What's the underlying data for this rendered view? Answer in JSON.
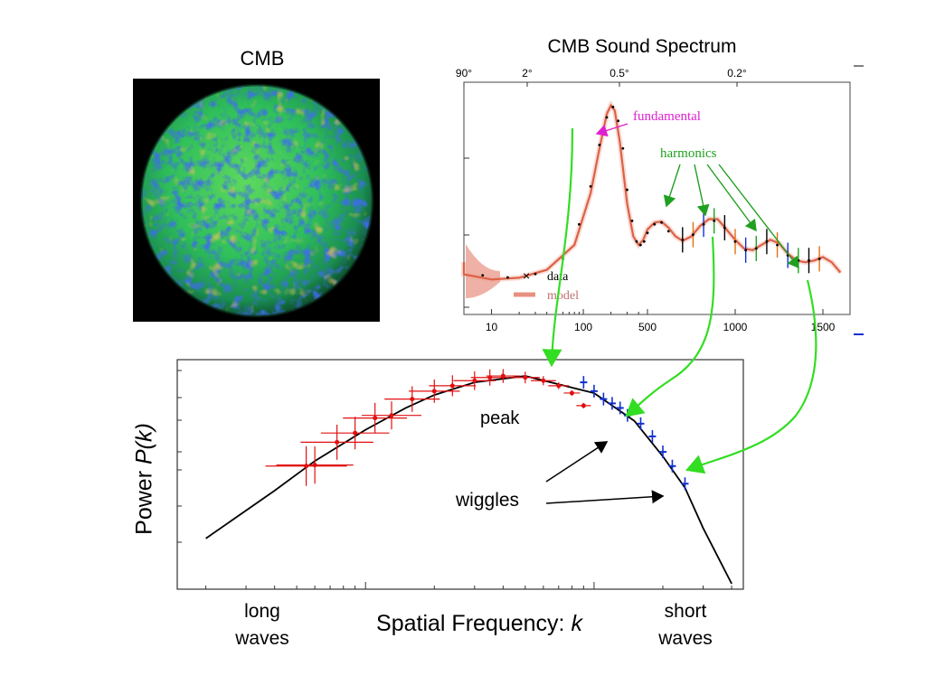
{
  "cmb_panel": {
    "title": "CMB"
  },
  "colors": {
    "fundamental": "#e020d0",
    "harmonics": "#20a020",
    "arrow_green": "#33dd22",
    "red": "#e01010",
    "blue": "#1030d0",
    "model_red": "#d04020"
  },
  "chart_data": [
    {
      "type": "line",
      "title": "CMB Sound Spectrum",
      "x_scale": "multipole (hybrid log/linear)",
      "x_ticks_bottom": [
        "10",
        "100",
        "500",
        "1000",
        "1500"
      ],
      "x_ticks_top": [
        "90°",
        "2°",
        "0.5°",
        "0.2°"
      ],
      "legend": {
        "position": "lower-left",
        "entries": [
          "data",
          "model"
        ]
      },
      "annotations": [
        "fundamental",
        "harmonics"
      ],
      "series": [
        {
          "name": "model",
          "x": [
            2,
            5,
            10,
            20,
            40,
            80,
            120,
            150,
            180,
            200,
            220,
            250,
            300,
            350,
            400,
            450,
            500,
            540,
            580,
            620,
            660,
            700,
            750,
            800,
            850,
            900,
            950,
            1000,
            1050,
            1100,
            1150,
            1200,
            1250,
            1300,
            1350,
            1400,
            1450,
            1500,
            1550,
            1600
          ],
          "y": [
            1200,
            850,
            700,
            750,
            980,
            1700,
            3200,
            4500,
            5500,
            5750,
            5600,
            4700,
            2900,
            1950,
            1700,
            1850,
            2150,
            2350,
            2380,
            2200,
            1950,
            1820,
            1950,
            2250,
            2450,
            2450,
            2150,
            1850,
            1600,
            1550,
            1700,
            1850,
            1750,
            1450,
            1250,
            1200,
            1250,
            1350,
            1200,
            900
          ]
        },
        {
          "name": "data",
          "x": [
            8,
            15,
            30,
            60,
            90,
            120,
            150,
            180,
            210,
            240,
            270,
            300,
            340,
            380,
            420,
            460,
            500,
            540,
            580,
            620,
            700,
            760,
            820,
            880,
            940,
            1000,
            1060,
            1120,
            1180,
            1240,
            1300,
            1360,
            1420,
            1480
          ],
          "y": [
            820,
            760,
            860,
            1300,
            2300,
            3400,
            4600,
            5400,
            5700,
            5300,
            4500,
            3300,
            2400,
            1800,
            1700,
            1800,
            2050,
            2300,
            2350,
            2100,
            1850,
            2000,
            2300,
            2400,
            2200,
            1800,
            1550,
            1600,
            1800,
            1700,
            1400,
            1250,
            1250,
            1300
          ]
        }
      ]
    },
    {
      "type": "line",
      "xlabel": "Spatial Frequency: k",
      "ylabel": "Power  P(k)",
      "x_scale": "log",
      "y_scale": "log",
      "annotations": [
        "peak",
        "wiggles",
        "long waves",
        "short waves"
      ],
      "series": [
        {
          "name": "model",
          "x": [
            0.002,
            0.004,
            0.006,
            0.01,
            0.015,
            0.02,
            0.03,
            0.05,
            0.1,
            0.15,
            0.2,
            0.25,
            0.3,
            0.4
          ],
          "y": [
            2600,
            5000,
            7500,
            11500,
            15500,
            18500,
            22000,
            24000,
            19000,
            13000,
            8000,
            5200,
            3000,
            1400
          ]
        },
        {
          "name": "red",
          "x": [
            0.0055,
            0.006,
            0.0075,
            0.009,
            0.011,
            0.013,
            0.016,
            0.02,
            0.024,
            0.03,
            0.035,
            0.04,
            0.05,
            0.06,
            0.07,
            0.08,
            0.09
          ],
          "y": [
            7000,
            7100,
            9700,
            11000,
            13500,
            14000,
            17500,
            19500,
            21000,
            22500,
            23500,
            24000,
            23500,
            22500,
            21000,
            19000,
            16000
          ]
        },
        {
          "name": "blue",
          "x": [
            0.09,
            0.1,
            0.11,
            0.12,
            0.13,
            0.14,
            0.16,
            0.18,
            0.2,
            0.22,
            0.25
          ],
          "y": [
            22000,
            19500,
            17500,
            16500,
            15500,
            14000,
            12500,
            10500,
            8500,
            7000,
            5500
          ]
        }
      ]
    }
  ],
  "labels": {
    "peak": "peak",
    "wiggles": "wiggles",
    "long": "long waves",
    "short": "short waves",
    "xlabel_text": "Spatial Frequency: ",
    "xlabel_var": "k",
    "ylabel_text": "Power  ",
    "ylabel_var": "P(k)",
    "legend_data_marker": "×",
    "legend_data": "data",
    "legend_model": "model",
    "fundamental": "fundamental",
    "harmonics": "harmonics"
  }
}
